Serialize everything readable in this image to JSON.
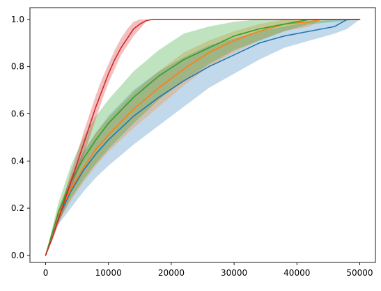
{
  "chart_data": {
    "type": "line",
    "title": "",
    "xlabel": "",
    "ylabel": "",
    "xlim": [
      -2500,
      52500
    ],
    "ylim": [
      -0.03,
      1.05
    ],
    "x_ticks": [
      0,
      10000,
      20000,
      30000,
      40000,
      50000
    ],
    "x_tick_labels": [
      "0",
      "10000",
      "20000",
      "30000",
      "40000",
      "50000"
    ],
    "y_ticks": [
      0.0,
      0.2,
      0.4,
      0.6,
      0.8,
      1.0
    ],
    "y_tick_labels": [
      "0.0",
      "0.2",
      "0.4",
      "0.6",
      "0.8",
      "1.0"
    ],
    "grid": false,
    "legend": false,
    "series": [
      {
        "color": "#1f77b4",
        "band_opacity": 0.28,
        "x": [
          0,
          2000,
          4000,
          6000,
          8000,
          10000,
          14000,
          18000,
          22000,
          26000,
          30000,
          34000,
          38000,
          42000,
          46000,
          48000,
          50000
        ],
        "values": [
          0.0,
          0.16,
          0.27,
          0.36,
          0.43,
          0.49,
          0.59,
          0.67,
          0.74,
          0.8,
          0.85,
          0.9,
          0.93,
          0.95,
          0.97,
          1.0,
          1.0
        ],
        "lower": [
          0.0,
          0.13,
          0.2,
          0.27,
          0.33,
          0.38,
          0.47,
          0.55,
          0.63,
          0.71,
          0.77,
          0.83,
          0.88,
          0.91,
          0.94,
          0.96,
          1.0
        ],
        "upper": [
          0.0,
          0.19,
          0.33,
          0.44,
          0.52,
          0.59,
          0.7,
          0.78,
          0.84,
          0.89,
          0.92,
          0.95,
          0.97,
          0.99,
          1.0,
          1.0,
          1.0
        ]
      },
      {
        "color": "#ff7f0e",
        "band_opacity": 0.28,
        "x": [
          0,
          2000,
          4000,
          6000,
          8000,
          10000,
          14000,
          18000,
          22000,
          26000,
          30000,
          34000,
          38000,
          42000,
          44000,
          50000
        ],
        "values": [
          0.0,
          0.17,
          0.28,
          0.37,
          0.45,
          0.51,
          0.62,
          0.71,
          0.79,
          0.86,
          0.91,
          0.95,
          0.98,
          0.99,
          1.0,
          1.0
        ],
        "lower": [
          0.0,
          0.14,
          0.23,
          0.31,
          0.38,
          0.44,
          0.54,
          0.63,
          0.72,
          0.8,
          0.86,
          0.91,
          0.95,
          0.97,
          1.0,
          1.0
        ],
        "upper": [
          0.0,
          0.2,
          0.33,
          0.43,
          0.52,
          0.58,
          0.69,
          0.78,
          0.86,
          0.91,
          0.95,
          0.98,
          1.0,
          1.0,
          1.0,
          1.0
        ]
      },
      {
        "color": "#2ca02c",
        "band_opacity": 0.3,
        "x": [
          0,
          2000,
          4000,
          6000,
          8000,
          10000,
          14000,
          18000,
          22000,
          26000,
          30000,
          34000,
          38000,
          42000,
          50000
        ],
        "values": [
          0.0,
          0.18,
          0.31,
          0.41,
          0.49,
          0.56,
          0.67,
          0.76,
          0.83,
          0.88,
          0.93,
          0.96,
          0.98,
          1.0,
          1.0
        ],
        "lower": [
          0.0,
          0.14,
          0.24,
          0.32,
          0.39,
          0.45,
          0.56,
          0.66,
          0.74,
          0.81,
          0.87,
          0.91,
          0.95,
          0.98,
          1.0
        ],
        "upper": [
          0.0,
          0.22,
          0.38,
          0.5,
          0.59,
          0.66,
          0.78,
          0.87,
          0.94,
          0.97,
          0.99,
          1.0,
          1.0,
          1.0,
          1.0
        ]
      },
      {
        "color": "#d62728",
        "band_opacity": 0.3,
        "x": [
          0,
          1000,
          2000,
          3000,
          4000,
          5000,
          6000,
          7000,
          8000,
          9000,
          10000,
          11000,
          12000,
          13000,
          14000,
          15000,
          16000,
          17000,
          50000
        ],
        "values": [
          0.0,
          0.07,
          0.15,
          0.23,
          0.31,
          0.39,
          0.47,
          0.55,
          0.63,
          0.7,
          0.77,
          0.83,
          0.88,
          0.92,
          0.96,
          0.98,
          0.995,
          1.0,
          1.0
        ],
        "lower": [
          0.0,
          0.06,
          0.13,
          0.2,
          0.27,
          0.35,
          0.42,
          0.5,
          0.58,
          0.66,
          0.73,
          0.79,
          0.85,
          0.89,
          0.93,
          0.96,
          0.99,
          1.0,
          1.0
        ],
        "upper": [
          0.0,
          0.08,
          0.17,
          0.26,
          0.35,
          0.43,
          0.52,
          0.6,
          0.68,
          0.75,
          0.81,
          0.87,
          0.92,
          0.96,
          0.99,
          1.0,
          1.0,
          1.0,
          1.0
        ]
      }
    ]
  }
}
